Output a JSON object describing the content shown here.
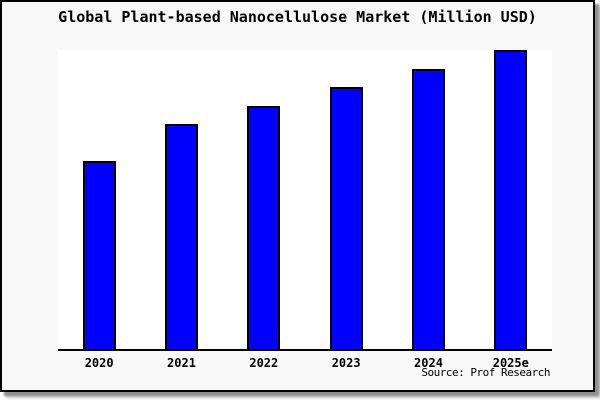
{
  "title": "Global Plant-based Nanocellulose Market (Million USD)",
  "source": "Source: Prof Research",
  "colors": {
    "figure_background": "#f8f8f8",
    "plot_background": "#ffffff",
    "bar_fill": "#0000ff",
    "bar_border": "#000000",
    "frame_border": "#000000",
    "axis_line": "#000000",
    "shadow": "#8f8f8f"
  },
  "chart_data": {
    "type": "bar",
    "title": "Global Plant-based Nanocellulose Market (Million USD)",
    "categories": [
      "2020",
      "2021",
      "2022",
      "2023",
      "2024",
      "2025e"
    ],
    "values": [
      62.8,
      75.2,
      81.4,
      87.7,
      93.7,
      100
    ],
    "values_note": "no y-axis tick labels are shown; values are estimated relative bar heights with tallest bar = 100",
    "xlabel": "",
    "ylabel": "",
    "ylim": [
      0,
      100
    ],
    "grid": false,
    "legend": "none",
    "y_axis_visible": false,
    "x_axis_visible": true,
    "annotations": [
      "Source: Prof Research"
    ]
  }
}
